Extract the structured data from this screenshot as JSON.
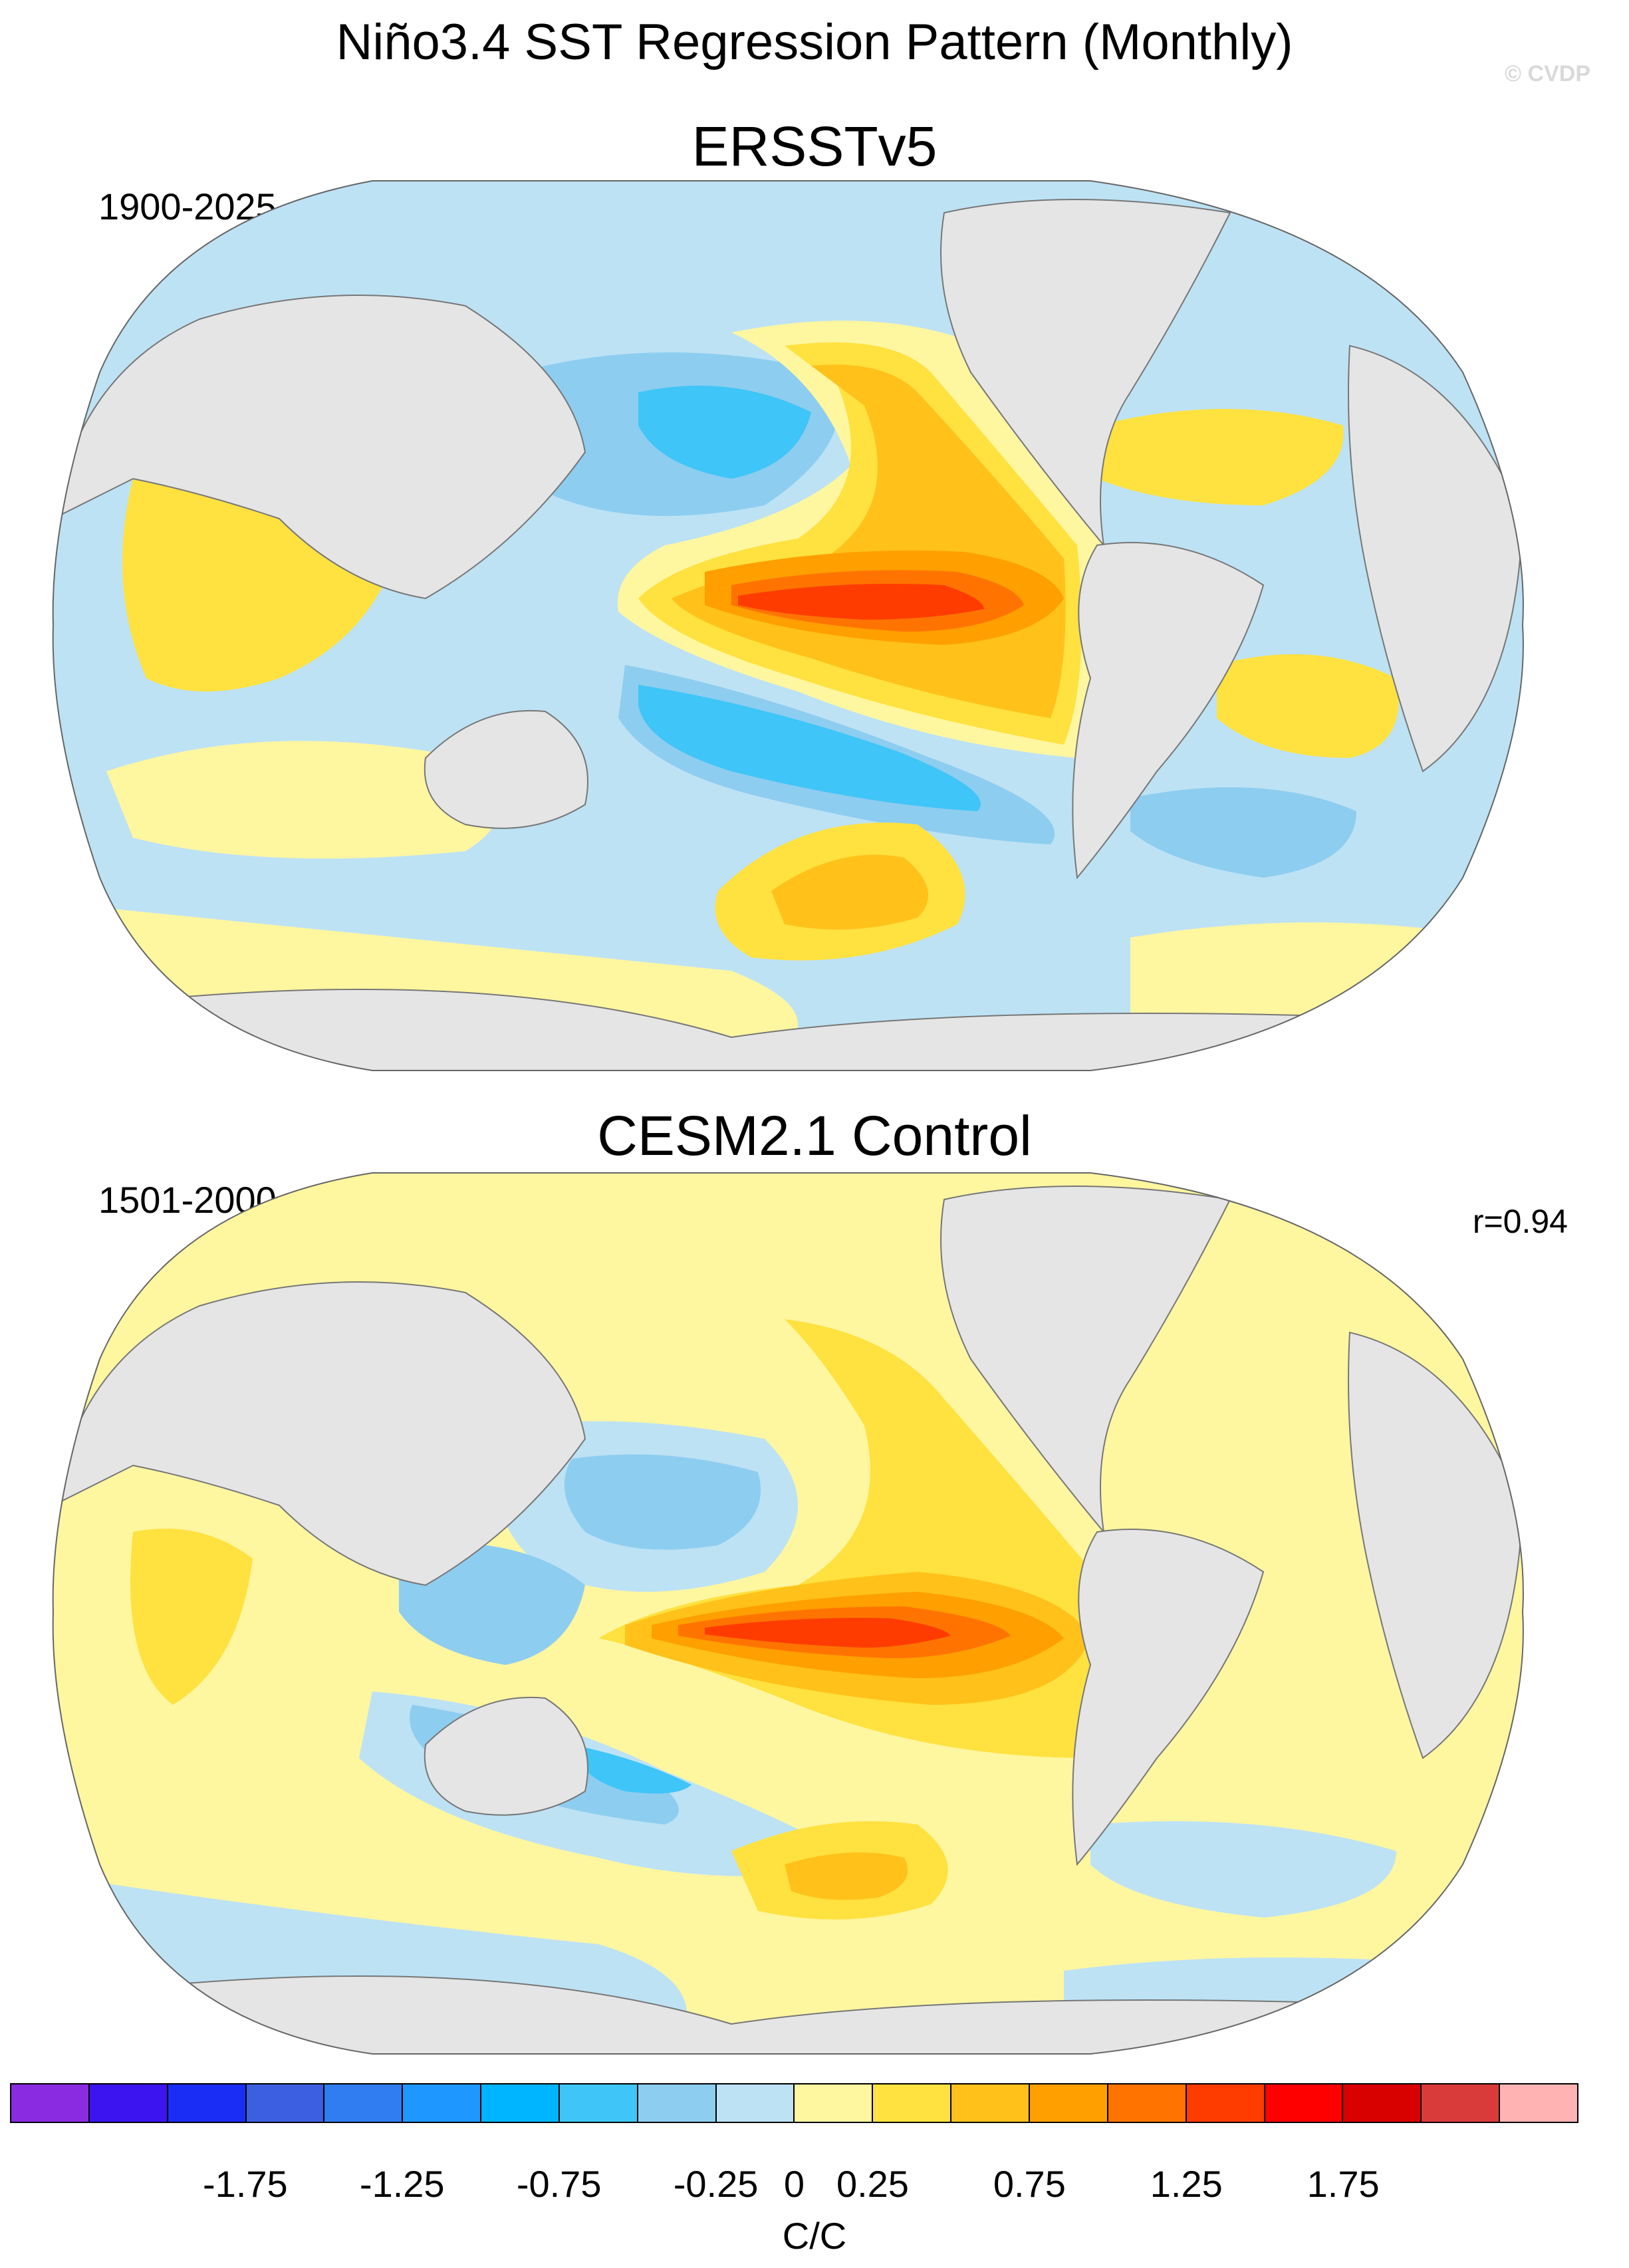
{
  "figure": {
    "title": "Niño3.4 SST Regression Pattern (Monthly)",
    "copyright": "© CVDP"
  },
  "panels": [
    {
      "title": "ERSSTv5",
      "period": "1900-2025",
      "correlation": ""
    },
    {
      "title": "CESM2.1 Control",
      "period": "1501-2000",
      "correlation": "r=0.94"
    }
  ],
  "chart_data": {
    "type": "heatmap",
    "projection": "Robinson (Pacific-centered)",
    "variable": "SST regression onto Niño3.4",
    "units": "C/C",
    "colorbar": {
      "units": "C/C",
      "tick_labels": [
        "-1.75",
        "-1.25",
        "-0.75",
        "-0.25",
        "0",
        "0.25",
        "0.75",
        "1.25",
        "1.75"
      ],
      "tick_values": [
        -1.75,
        -1.25,
        -0.75,
        -0.25,
        0,
        0.25,
        0.75,
        1.25,
        1.75
      ],
      "bin_colors": [
        "#8a2be2",
        "#3c14f0",
        "#1a2df5",
        "#3b5fe0",
        "#2f7df0",
        "#1e98ff",
        "#00b5ff",
        "#3fc5f7",
        "#8dcdf0",
        "#bde2f4",
        "#fff6a0",
        "#ffe13f",
        "#ffc11a",
        "#ff9f00",
        "#ff7400",
        "#ff3c00",
        "#ff0000",
        "#d90000",
        "#d93b3b",
        "#ffb3b3"
      ]
    },
    "land_color": "#e5e5e5"
  }
}
